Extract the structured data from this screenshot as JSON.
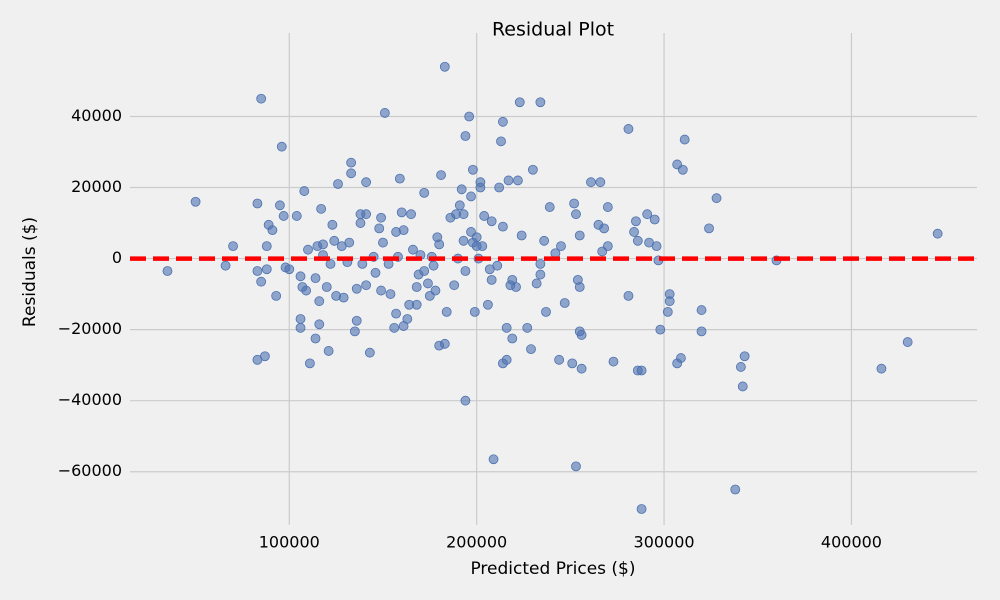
{
  "chart_data": {
    "type": "scatter",
    "title": "Residual Plot",
    "x_label": "Predicted Prices ($)",
    "y_label": "Residuals ($)",
    "color": "#4c72b0",
    "grid": true,
    "reference_line": {
      "value": 0,
      "color": "#ff0000",
      "style": "dashed"
    },
    "xlim": [
      15000,
      467000
    ],
    "ylim": [
      -75000,
      63500
    ],
    "xticks": [
      100000,
      200000,
      300000,
      400000
    ],
    "yticks": [
      {
        "value": -60000,
        "label": "−60000"
      },
      {
        "value": -40000,
        "label": "−40000"
      },
      {
        "value": -20000,
        "label": "−20000"
      },
      0,
      20000,
      40000
    ],
    "x": [
      35000,
      50000,
      70000,
      66000,
      85000,
      83000,
      83000,
      85000,
      87000,
      83000,
      89000,
      88000,
      88000,
      91000,
      93000,
      95000,
      96000,
      97000,
      98000,
      100000,
      104000,
      108000,
      106000,
      106000,
      106000,
      107000,
      109000,
      110000,
      111000,
      114000,
      115000,
      116000,
      116000,
      114000,
      117000,
      118000,
      118000,
      120000,
      121000,
      122000,
      123000,
      124000,
      125000,
      126000,
      129000,
      128000,
      131000,
      132000,
      133000,
      133000,
      135000,
      136000,
      136000,
      138000,
      138000,
      139000,
      141000,
      141000,
      141000,
      143000,
      145000,
      146000,
      148000,
      149000,
      149000,
      150000,
      151000,
      153000,
      154000,
      156000,
      157000,
      157000,
      158000,
      159000,
      160000,
      161000,
      161000,
      163000,
      164000,
      165000,
      166000,
      168000,
      168000,
      169000,
      170000,
      172000,
      172000,
      174000,
      175000,
      176000,
      177000,
      178000,
      179000,
      180000,
      180000,
      181000,
      183000,
      183000,
      184000,
      186000,
      188000,
      189000,
      190000,
      191000,
      192000,
      193000,
      193000,
      194000,
      194000,
      194000,
      196000,
      197000,
      197000,
      198000,
      198000,
      199000,
      200000,
      200000,
      201000,
      202000,
      202000,
      203000,
      204000,
      206000,
      207000,
      208000,
      208000,
      209000,
      211000,
      212000,
      213000,
      214000,
      214000,
      214000,
      216000,
      216000,
      217000,
      219000,
      218000,
      219000,
      221000,
      222000,
      223000,
      224000,
      227000,
      229000,
      230000,
      232000,
      234000,
      234000,
      234000,
      236000,
      237000,
      239000,
      242000,
      244000,
      245000,
      247000,
      251000,
      252000,
      253000,
      253000,
      254000,
      255000,
      255000,
      255000,
      256000,
      256000,
      261000,
      265000,
      266000,
      267000,
      268000,
      270000,
      270000,
      273000,
      281000,
      281000,
      284000,
      285000,
      286000,
      286000,
      288000,
      288000,
      291000,
      292000,
      295000,
      296000,
      297000,
      298000,
      302000,
      303000,
      303000,
      307000,
      307000,
      309000,
      310000,
      311000,
      320000,
      320000,
      324000,
      328000,
      338000,
      341000,
      342000,
      343000,
      360000,
      416000,
      430000,
      446000
    ],
    "values": [
      -3500,
      16000,
      3500,
      -2000,
      45000,
      15500,
      -3500,
      -6500,
      -27500,
      -28500,
      9500,
      3500,
      -3000,
      8000,
      -10500,
      15000,
      31500,
      12000,
      -2500,
      -3000,
      12000,
      19000,
      -19500,
      -17000,
      -5000,
      -8000,
      -9000,
      2500,
      -29500,
      -5500,
      3500,
      -18500,
      -12000,
      -22500,
      14000,
      4000,
      1000,
      -8000,
      -26000,
      -1500,
      9500,
      5000,
      -10500,
      21000,
      -11000,
      3500,
      -1000,
      4500,
      27000,
      24000,
      -20500,
      -17500,
      -8500,
      12500,
      10000,
      -1500,
      21500,
      12500,
      -7500,
      -26500,
      500,
      -4000,
      8500,
      11500,
      -9000,
      4500,
      41000,
      -1500,
      -10000,
      -19500,
      7500,
      -15500,
      500,
      22500,
      13000,
      8000,
      -19000,
      -17000,
      -13000,
      12500,
      2500,
      -8000,
      -13000,
      -4500,
      1000,
      -3500,
      18500,
      -7000,
      -10500,
      500,
      -2000,
      -9000,
      6000,
      4000,
      -24500,
      23500,
      -24000,
      54000,
      -15000,
      11500,
      -7500,
      12500,
      0,
      15000,
      19500,
      5000,
      12500,
      34500,
      -3500,
      -40000,
      40000,
      7500,
      17500,
      25000,
      4500,
      -15000,
      6000,
      3500,
      0,
      20000,
      21500,
      3500,
      12000,
      -13000,
      -3000,
      10500,
      -6000,
      -56500,
      -2000,
      20000,
      33000,
      38500,
      9000,
      -29500,
      -28500,
      -19500,
      22000,
      -6000,
      -7500,
      -22500,
      -8000,
      22000,
      44000,
      6500,
      -19500,
      -25500,
      25000,
      -7000,
      44000,
      -4500,
      -1500,
      5000,
      -15000,
      14500,
      1500,
      -28500,
      3500,
      -12500,
      -29500,
      15500,
      12500,
      -58500,
      -6000,
      -8000,
      -20500,
      6500,
      -21500,
      -31000,
      21500,
      9500,
      21500,
      2000,
      8500,
      14500,
      3500,
      -29000,
      -10500,
      36500,
      7500,
      10500,
      -31500,
      5000,
      -31500,
      -70500,
      12500,
      4500,
      11000,
      3500,
      -500,
      -20000,
      -15000,
      -10000,
      -12000,
      -29500,
      26500,
      -28000,
      25000,
      33500,
      -14500,
      -20500,
      8500,
      17000,
      -65000,
      -30500,
      -36000,
      -27500,
      -500,
      -31000,
      -23500,
      7000
    ]
  }
}
